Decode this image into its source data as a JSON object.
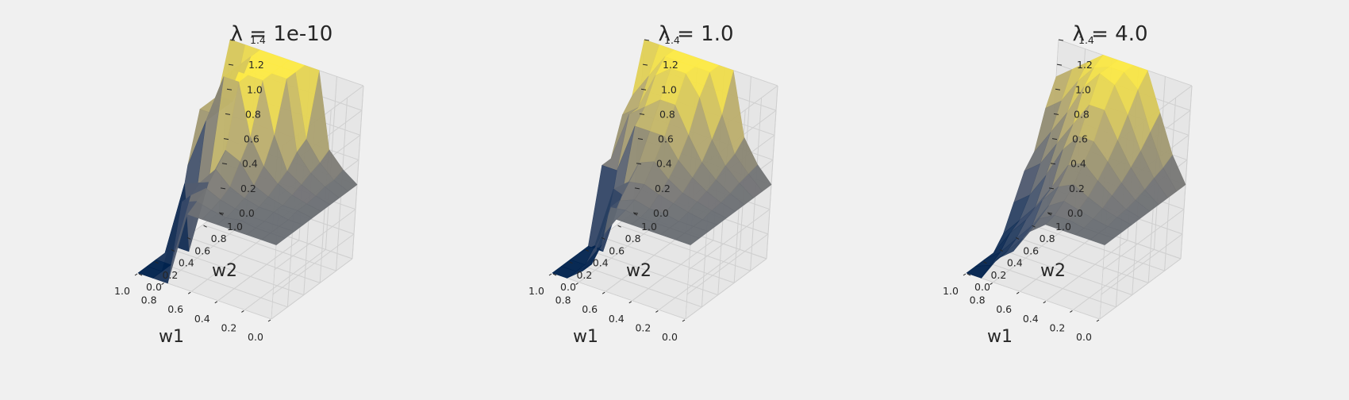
{
  "chart_data": [
    {
      "type": "surface3d",
      "title": "λ = 1e-10",
      "xlabel": "w1",
      "ylabel": "w2",
      "zlabel": "",
      "x_ticks": [
        "0.0",
        "0.2",
        "0.4",
        "0.6",
        "0.8",
        "1.0"
      ],
      "y_ticks": [
        "0.0",
        "0.2",
        "0.4",
        "0.6",
        "0.8",
        "1.0"
      ],
      "z_ticks": [
        "0.0",
        "0.2",
        "0.4",
        "0.6",
        "0.8",
        "1.0",
        "1.2",
        "1.4"
      ],
      "xlim": [
        0,
        1
      ],
      "ylim": [
        0,
        1
      ],
      "zlim": [
        0,
        1.4
      ],
      "x": [
        0,
        0.111,
        0.222,
        0.333,
        0.444,
        0.556,
        0.667,
        0.778,
        0.889,
        1.0
      ],
      "y": [
        0,
        0.111,
        0.222,
        0.333,
        0.444,
        0.556,
        0.667,
        0.778,
        0.889,
        1.0
      ],
      "z": [
        [
          0.6,
          0.6,
          0.6,
          0.6,
          0.6,
          0.6,
          0.6,
          0.6,
          0.6,
          0.6
        ],
        [
          0.6,
          0.6,
          0.6,
          0.6,
          0.62,
          0.62,
          0.63,
          0.65,
          0.65,
          0.68
        ],
        [
          0.6,
          0.6,
          0.6,
          0.62,
          0.62,
          0.65,
          0.68,
          0.72,
          0.75,
          0.8
        ],
        [
          0.6,
          0.62,
          0.6,
          0.62,
          0.65,
          0.7,
          0.75,
          0.85,
          0.9,
          1.4
        ],
        [
          0.6,
          0.6,
          0.62,
          0.65,
          0.7,
          0.8,
          1.0,
          1.4,
          1.4,
          1.4
        ],
        [
          0.6,
          0.62,
          0.65,
          0.7,
          0.85,
          1.0,
          1.4,
          1.4,
          1.4,
          1.4
        ],
        [
          0.6,
          0.65,
          0.7,
          0.8,
          0.9,
          1.4,
          1.4,
          1.4,
          1.4,
          1.4
        ],
        [
          0.0,
          0.6,
          0.6,
          0.65,
          0.6,
          1.4,
          1.4,
          1.4,
          1.4,
          1.4
        ],
        [
          0.0,
          0.0,
          0.0,
          0.6,
          0.0,
          1.0,
          1.0,
          1.0,
          1.0,
          1.4
        ],
        [
          0.0,
          0.0,
          0.0,
          0.0,
          0.0,
          0.6,
          1.0,
          1.0,
          1.0,
          1.4
        ]
      ]
    },
    {
      "type": "surface3d",
      "title": "λ = 1.0",
      "xlabel": "w1",
      "ylabel": "w2",
      "zlabel": "",
      "x_ticks": [
        "0.0",
        "0.2",
        "0.4",
        "0.6",
        "0.8",
        "1.0"
      ],
      "y_ticks": [
        "0.0",
        "0.2",
        "0.4",
        "0.6",
        "0.8",
        "1.0"
      ],
      "z_ticks": [
        "0.0",
        "0.2",
        "0.4",
        "0.6",
        "0.8",
        "1.0",
        "1.2",
        "1.4"
      ],
      "xlim": [
        0,
        1
      ],
      "ylim": [
        0,
        1
      ],
      "zlim": [
        0,
        1.4
      ],
      "x": [
        0,
        0.111,
        0.222,
        0.333,
        0.444,
        0.556,
        0.667,
        0.778,
        0.889,
        1.0
      ],
      "y": [
        0,
        0.111,
        0.222,
        0.333,
        0.444,
        0.556,
        0.667,
        0.778,
        0.889,
        1.0
      ],
      "z": [
        [
          0.6,
          0.6,
          0.6,
          0.6,
          0.6,
          0.6,
          0.6,
          0.6,
          0.6,
          0.6
        ],
        [
          0.6,
          0.6,
          0.6,
          0.6,
          0.62,
          0.63,
          0.65,
          0.68,
          0.7,
          0.72
        ],
        [
          0.6,
          0.6,
          0.6,
          0.62,
          0.65,
          0.68,
          0.72,
          0.78,
          0.82,
          0.9
        ],
        [
          0.6,
          0.6,
          0.62,
          0.65,
          0.68,
          0.75,
          0.82,
          0.95,
          1.1,
          1.4
        ],
        [
          0.6,
          0.6,
          0.62,
          0.68,
          0.75,
          0.85,
          1.0,
          1.25,
          1.4,
          1.4
        ],
        [
          0.6,
          0.62,
          0.65,
          0.72,
          0.85,
          1.0,
          1.2,
          1.4,
          1.4,
          1.4
        ],
        [
          0.4,
          0.6,
          0.6,
          0.7,
          0.8,
          1.0,
          1.2,
          1.4,
          1.4,
          1.4
        ],
        [
          0.1,
          0.1,
          0.2,
          0.6,
          0.5,
          1.0,
          1.1,
          1.3,
          1.4,
          1.4
        ],
        [
          0.0,
          0.0,
          0.0,
          0.1,
          0.0,
          0.6,
          1.0,
          1.0,
          1.2,
          1.4
        ],
        [
          0.0,
          0.0,
          0.0,
          0.0,
          0.0,
          0.6,
          0.6,
          0.9,
          1.0,
          1.4
        ]
      ]
    },
    {
      "type": "surface3d",
      "title": "λ = 4.0",
      "xlabel": "w1",
      "ylabel": "w2",
      "zlabel": "",
      "x_ticks": [
        "0.0",
        "0.2",
        "0.4",
        "0.6",
        "0.8",
        "1.0"
      ],
      "y_ticks": [
        "0.0",
        "0.2",
        "0.4",
        "0.6",
        "0.8",
        "1.0"
      ],
      "z_ticks": [
        "0.0",
        "0.2",
        "0.4",
        "0.6",
        "0.8",
        "1.0",
        "1.2",
        "1.4"
      ],
      "xlim": [
        0,
        1
      ],
      "ylim": [
        0,
        1
      ],
      "zlim": [
        0,
        1.4
      ],
      "x": [
        0,
        0.111,
        0.222,
        0.333,
        0.444,
        0.556,
        0.667,
        0.778,
        0.889,
        1.0
      ],
      "y": [
        0,
        0.111,
        0.222,
        0.333,
        0.444,
        0.556,
        0.667,
        0.778,
        0.889,
        1.0
      ],
      "z": [
        [
          0.6,
          0.6,
          0.6,
          0.6,
          0.6,
          0.6,
          0.6,
          0.6,
          0.6,
          0.6
        ],
        [
          0.6,
          0.6,
          0.6,
          0.62,
          0.63,
          0.65,
          0.68,
          0.72,
          0.75,
          0.8
        ],
        [
          0.6,
          0.6,
          0.62,
          0.65,
          0.7,
          0.75,
          0.82,
          0.9,
          1.0,
          1.1
        ],
        [
          0.6,
          0.62,
          0.65,
          0.7,
          0.78,
          0.88,
          1.0,
          1.15,
          1.3,
          1.4
        ],
        [
          0.6,
          0.62,
          0.68,
          0.76,
          0.88,
          1.0,
          1.2,
          1.35,
          1.4,
          1.4
        ],
        [
          0.5,
          0.55,
          0.6,
          0.7,
          0.82,
          1.0,
          1.2,
          1.4,
          1.4,
          1.4
        ],
        [
          0.3,
          0.35,
          0.4,
          0.55,
          0.6,
          0.85,
          1.0,
          1.25,
          1.35,
          1.4
        ],
        [
          0.2,
          0.2,
          0.25,
          0.35,
          0.4,
          0.6,
          0.8,
          1.0,
          1.2,
          1.3
        ],
        [
          0.0,
          0.05,
          0.1,
          0.2,
          0.25,
          0.4,
          0.6,
          0.8,
          1.0,
          1.2
        ],
        [
          0.0,
          0.0,
          0.0,
          0.0,
          0.1,
          0.3,
          0.5,
          0.6,
          0.9,
          1.1
        ]
      ]
    }
  ]
}
